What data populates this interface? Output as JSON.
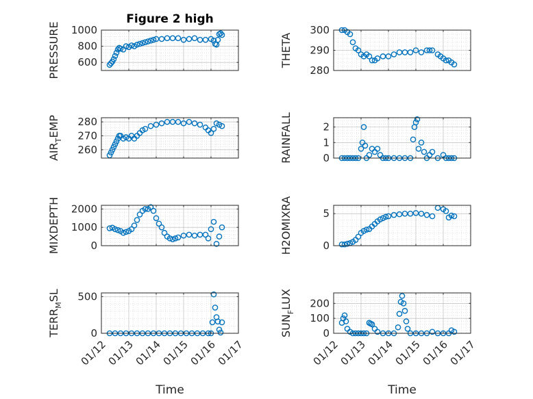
{
  "figure_title": "Figure 2 high",
  "colors": {
    "marker": "#0072BD",
    "axis": "#262626",
    "grid": "#b0b0b0",
    "minor_grid": "#d4d4d4"
  },
  "chart_data": [
    {
      "type": "scatter",
      "ylabel": "PRESSURE",
      "title": "Figure 2 high",
      "xlabel": "",
      "xlim": [
        0,
        5
      ],
      "ylim": [
        500,
        1000
      ],
      "yticks": [
        600,
        800,
        1000
      ],
      "ytick_labels": [
        "600",
        "800",
        "1000"
      ],
      "xticks": [
        0,
        1,
        2,
        3,
        4,
        5
      ],
      "xtick_labels": [],
      "x": [
        0.3,
        0.35,
        0.4,
        0.45,
        0.5,
        0.55,
        0.6,
        0.65,
        0.7,
        0.8,
        0.9,
        1.0,
        1.1,
        1.2,
        1.3,
        1.4,
        1.5,
        1.6,
        1.7,
        1.8,
        1.9,
        2.0,
        2.2,
        2.4,
        2.6,
        2.8,
        3.0,
        3.2,
        3.4,
        3.6,
        3.8,
        4.0,
        4.1,
        4.15,
        4.2,
        4.25,
        4.3,
        4.35,
        4.4
      ],
      "y": [
        570,
        590,
        610,
        640,
        680,
        720,
        760,
        780,
        770,
        760,
        800,
        790,
        810,
        800,
        820,
        830,
        840,
        850,
        860,
        870,
        880,
        890,
        890,
        900,
        900,
        900,
        880,
        890,
        900,
        880,
        880,
        890,
        870,
        830,
        820,
        880,
        950,
        960,
        940
      ]
    },
    {
      "type": "scatter",
      "ylabel": "THETA",
      "xlabel": "",
      "xlim": [
        0,
        5
      ],
      "ylim": [
        280,
        300
      ],
      "yticks": [
        280,
        290,
        300
      ],
      "ytick_labels": [
        "280",
        "290",
        "300"
      ],
      "xticks": [
        0,
        1,
        2,
        3,
        4,
        5
      ],
      "xtick_labels": [],
      "x": [
        0.3,
        0.4,
        0.5,
        0.6,
        0.7,
        0.8,
        0.9,
        1.0,
        1.1,
        1.2,
        1.3,
        1.4,
        1.5,
        1.6,
        1.8,
        2.0,
        2.2,
        2.4,
        2.6,
        2.8,
        3.0,
        3.2,
        3.4,
        3.5,
        3.6,
        3.8,
        3.9,
        4.0,
        4.1,
        4.2,
        4.3,
        4.4
      ],
      "y": [
        300,
        300,
        299,
        298,
        294,
        291,
        290,
        288,
        287,
        288,
        287,
        285,
        285,
        286,
        287,
        287,
        288,
        289,
        289,
        289,
        290,
        289,
        290,
        290,
        290,
        288,
        287,
        286,
        285,
        285,
        284,
        283
      ]
    },
    {
      "type": "scatter",
      "ylabel": "AIR_TEMP",
      "xlabel": "",
      "xlim": [
        0,
        5
      ],
      "ylim": [
        254,
        283
      ],
      "yticks": [
        260,
        270,
        280
      ],
      "ytick_labels": [
        "260",
        "270",
        "280"
      ],
      "xticks": [
        0,
        1,
        2,
        3,
        4,
        5
      ],
      "xtick_labels": [],
      "x": [
        0.3,
        0.35,
        0.4,
        0.45,
        0.5,
        0.55,
        0.6,
        0.65,
        0.7,
        0.8,
        0.9,
        1.0,
        1.1,
        1.2,
        1.3,
        1.4,
        1.5,
        1.6,
        1.8,
        2.0,
        2.2,
        2.4,
        2.6,
        2.8,
        3.0,
        3.2,
        3.4,
        3.6,
        3.8,
        3.9,
        4.0,
        4.1,
        4.2,
        4.3,
        4.4
      ],
      "y": [
        256,
        258,
        260,
        262,
        264,
        266,
        268,
        270,
        270,
        268,
        269,
        268,
        270,
        268,
        270,
        272,
        274,
        275,
        277,
        278,
        279,
        280,
        280,
        280,
        279,
        280,
        279,
        278,
        276,
        274,
        272,
        275,
        279,
        278,
        277
      ]
    },
    {
      "type": "scatter",
      "ylabel": "RAINFALL",
      "xlabel": "",
      "xlim": [
        0,
        5
      ],
      "ylim": [
        0,
        2.6
      ],
      "yticks": [
        0,
        1,
        2
      ],
      "ytick_labels": [
        "0",
        "1",
        "2"
      ],
      "xticks": [
        0,
        1,
        2,
        3,
        4,
        5
      ],
      "xtick_labels": [],
      "x": [
        0.3,
        0.4,
        0.5,
        0.6,
        0.7,
        0.8,
        0.9,
        1.0,
        1.05,
        1.1,
        1.15,
        1.2,
        1.3,
        1.4,
        1.5,
        1.6,
        1.7,
        1.8,
        1.9,
        2.0,
        2.2,
        2.4,
        2.6,
        2.8,
        2.9,
        2.95,
        3.0,
        3.05,
        3.1,
        3.2,
        3.3,
        3.4,
        3.5,
        3.6,
        3.8,
        4.0,
        4.1,
        4.2,
        4.3,
        4.4
      ],
      "y": [
        0,
        0,
        0,
        0,
        0,
        0,
        0,
        0.6,
        1.0,
        2.0,
        0.8,
        0,
        0.2,
        0.6,
        0.4,
        0.6,
        0.2,
        0,
        0,
        0,
        0,
        0,
        0,
        0,
        1.2,
        2.0,
        2.3,
        2.5,
        0.6,
        1.0,
        0.4,
        0,
        0.2,
        0.4,
        0,
        0.2,
        0,
        0,
        0,
        0
      ]
    },
    {
      "type": "scatter",
      "ylabel": "MIXDEPTH",
      "xlabel": "",
      "xlim": [
        0,
        5
      ],
      "ylim": [
        0,
        2200
      ],
      "yticks": [
        0,
        1000,
        2000
      ],
      "ytick_labels": [
        "0",
        "1000",
        "2000"
      ],
      "xticks": [
        0,
        1,
        2,
        3,
        4,
        5
      ],
      "xtick_labels": [],
      "x": [
        0.3,
        0.4,
        0.5,
        0.6,
        0.7,
        0.8,
        0.9,
        1.0,
        1.1,
        1.2,
        1.3,
        1.4,
        1.5,
        1.6,
        1.7,
        1.8,
        1.9,
        2.0,
        2.1,
        2.2,
        2.3,
        2.4,
        2.5,
        2.6,
        2.7,
        2.8,
        3.0,
        3.2,
        3.4,
        3.6,
        3.8,
        3.9,
        4.0,
        4.1,
        4.2,
        4.3,
        4.4
      ],
      "y": [
        950,
        980,
        900,
        850,
        800,
        700,
        750,
        800,
        900,
        1100,
        1400,
        1700,
        1900,
        2000,
        2000,
        2100,
        1900,
        1500,
        1200,
        1000,
        700,
        500,
        400,
        350,
        400,
        450,
        550,
        600,
        550,
        600,
        600,
        400,
        900,
        1300,
        100,
        500,
        1000
      ]
    },
    {
      "type": "scatter",
      "ylabel": "H2OMIXRA",
      "xlabel": "",
      "xlim": [
        0,
        5
      ],
      "ylim": [
        0,
        6.3
      ],
      "yticks": [
        0,
        5
      ],
      "ytick_labels": [
        "0",
        "5"
      ],
      "xticks": [
        0,
        1,
        2,
        3,
        4,
        5
      ],
      "xtick_labels": [],
      "x": [
        0.3,
        0.4,
        0.5,
        0.6,
        0.7,
        0.8,
        0.9,
        1.0,
        1.1,
        1.2,
        1.3,
        1.4,
        1.5,
        1.6,
        1.7,
        1.8,
        1.9,
        2.0,
        2.2,
        2.4,
        2.6,
        2.8,
        3.0,
        3.2,
        3.4,
        3.6,
        3.8,
        4.0,
        4.1,
        4.2,
        4.3,
        4.4
      ],
      "y": [
        0.2,
        0.2,
        0.3,
        0.4,
        0.6,
        0.9,
        1.4,
        2.0,
        2.3,
        2.5,
        2.6,
        3.0,
        3.4,
        3.8,
        4.1,
        4.3,
        4.5,
        4.6,
        4.8,
        4.9,
        5.0,
        5.0,
        5.1,
        5.0,
        4.8,
        4.6,
        5.9,
        5.7,
        5.4,
        4.4,
        4.7,
        4.6
      ]
    },
    {
      "type": "scatter",
      "ylabel": "TERR_MSL",
      "xlabel": "Time",
      "xlim": [
        0,
        5
      ],
      "ylim": [
        0,
        550
      ],
      "yticks": [
        0,
        500
      ],
      "ytick_labels": [
        "0",
        "500"
      ],
      "xticks": [
        0,
        1,
        2,
        3,
        4,
        5
      ],
      "xtick_labels": [
        "01/12",
        "01/13",
        "01/14",
        "01/15",
        "01/16",
        "01/17"
      ],
      "x": [
        0.3,
        0.5,
        0.7,
        0.9,
        1.1,
        1.3,
        1.5,
        1.7,
        1.9,
        2.1,
        2.3,
        2.5,
        2.7,
        2.9,
        3.1,
        3.3,
        3.5,
        3.7,
        3.9,
        4.0,
        4.05,
        4.1,
        4.15,
        4.2,
        4.25,
        4.3,
        4.35,
        4.4
      ],
      "y": [
        0,
        0,
        0,
        0,
        0,
        0,
        0,
        0,
        0,
        0,
        0,
        0,
        0,
        0,
        0,
        0,
        0,
        0,
        0,
        0,
        150,
        530,
        350,
        220,
        160,
        50,
        10,
        150
      ]
    },
    {
      "type": "scatter",
      "ylabel": "SUN_FLUX",
      "xlabel": "Time",
      "xlim": [
        0,
        5
      ],
      "ylim": [
        0,
        270
      ],
      "yticks": [
        0,
        100,
        200
      ],
      "ytick_labels": [
        "0",
        "100",
        "200"
      ],
      "xticks": [
        0,
        1,
        2,
        3,
        4,
        5
      ],
      "xtick_labels": [
        "01/12",
        "01/13",
        "01/14",
        "01/15",
        "01/16",
        "01/17"
      ],
      "x": [
        0.3,
        0.35,
        0.4,
        0.45,
        0.5,
        0.6,
        0.7,
        0.8,
        0.9,
        1.0,
        1.1,
        1.2,
        1.3,
        1.35,
        1.4,
        1.5,
        1.6,
        1.8,
        2.0,
        2.2,
        2.35,
        2.4,
        2.45,
        2.5,
        2.55,
        2.6,
        2.65,
        2.7,
        2.8,
        3.0,
        3.2,
        3.4,
        3.6,
        3.8,
        4.0,
        4.2,
        4.3,
        4.4
      ],
      "y": [
        70,
        100,
        120,
        80,
        30,
        10,
        0,
        0,
        0,
        0,
        0,
        0,
        70,
        65,
        60,
        30,
        10,
        0,
        0,
        0,
        40,
        130,
        210,
        250,
        200,
        150,
        80,
        30,
        0,
        0,
        0,
        0,
        10,
        0,
        0,
        0,
        20,
        10
      ]
    }
  ]
}
